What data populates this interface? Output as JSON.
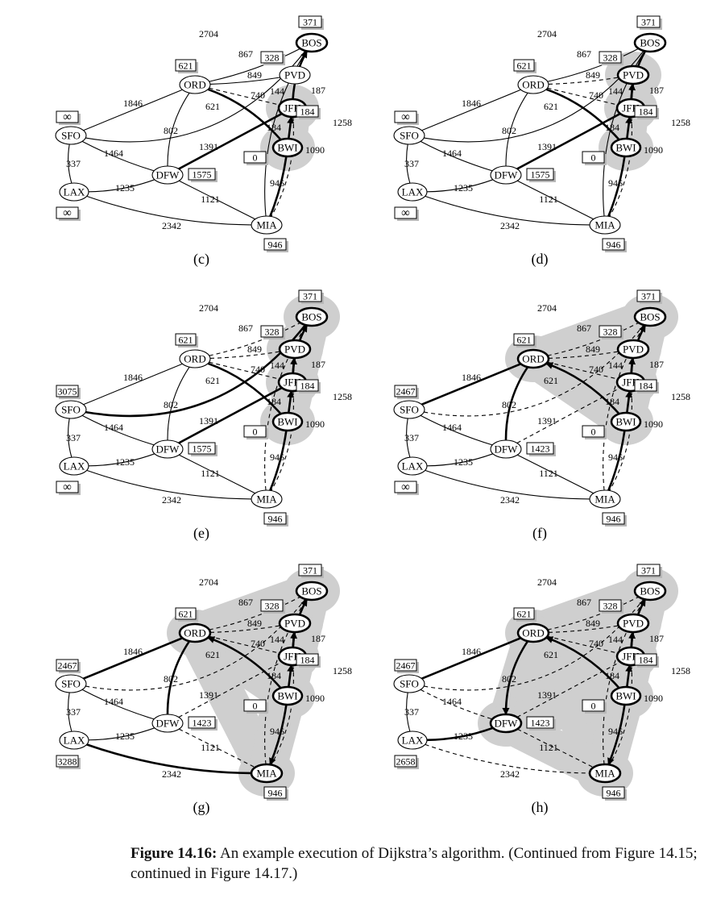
{
  "caption": {
    "label": "Figure 14.16:",
    "text": "An example execution of Dijkstra’s algorithm. (Continued from Figure 14.15; continued in Figure 14.17.)"
  },
  "colors": {
    "cloud": "#cfcfcf",
    "stroke": "#000000",
    "shadow": "#b8b8b8"
  },
  "nodes": [
    "BOS",
    "PVD",
    "ORD",
    "JFK",
    "SFO",
    "BWI",
    "DFW",
    "LAX",
    "MIA"
  ],
  "edges": [
    {
      "a": "SFO",
      "b": "BOS",
      "w": "2704"
    },
    {
      "a": "ORD",
      "b": "BOS",
      "w": "867"
    },
    {
      "a": "ORD",
      "b": "PVD",
      "w": "849"
    },
    {
      "a": "ORD",
      "b": "JFK",
      "w": "740"
    },
    {
      "a": "ORD",
      "b": "BWI",
      "w": "621"
    },
    {
      "a": "ORD",
      "b": "DFW",
      "w": "802"
    },
    {
      "a": "SFO",
      "b": "ORD",
      "w": "1846"
    },
    {
      "a": "SFO",
      "b": "DFW",
      "w": "1464"
    },
    {
      "a": "SFO",
      "b": "LAX",
      "w": "337"
    },
    {
      "a": "LAX",
      "b": "DFW",
      "w": "1235"
    },
    {
      "a": "LAX",
      "b": "MIA",
      "w": "2342"
    },
    {
      "a": "DFW",
      "b": "JFK",
      "w": "1391"
    },
    {
      "a": "DFW",
      "b": "MIA",
      "w": "1121"
    },
    {
      "a": "JFK",
      "b": "BOS",
      "w": "187"
    },
    {
      "a": "JFK",
      "b": "PVD",
      "w": "144"
    },
    {
      "a": "BWI",
      "b": "JFK",
      "w": "184"
    },
    {
      "a": "BWI",
      "b": "MIA",
      "w": "946"
    },
    {
      "a": "JFK",
      "b": "MIA",
      "w": "1090"
    },
    {
      "a": "MIA",
      "b": "BOS",
      "w": "1258"
    }
  ],
  "panels": [
    {
      "label": "(c)",
      "cloud": [
        "JFK",
        "BWI"
      ],
      "bold": [
        "BOS",
        "JFK",
        "BWI"
      ],
      "dist": {
        "BOS": "371",
        "PVD": "328",
        "ORD": "621",
        "JFK": "184",
        "SFO": "∞",
        "BWI": "0",
        "DFW": "1575",
        "LAX": "∞",
        "MIA": "946"
      },
      "tree": [
        [
          "JFK",
          "BOS"
        ],
        [
          "BWI",
          "JFK"
        ],
        [
          "BWI",
          "ORD"
        ],
        [
          "BWI",
          "MIA"
        ],
        [
          "JFK",
          "DFW"
        ]
      ],
      "arrows": [
        [
          "JFK",
          "BOS"
        ],
        [
          "BWI",
          "JFK"
        ]
      ],
      "dashed": [
        [
          "ORD",
          "JFK"
        ],
        [
          "JFK",
          "MIA"
        ]
      ]
    },
    {
      "label": "(d)",
      "cloud": [
        "PVD",
        "JFK",
        "BWI"
      ],
      "bold": [
        "BOS",
        "PVD",
        "JFK",
        "BWI"
      ],
      "dist": {
        "BOS": "371",
        "PVD": "328",
        "ORD": "621",
        "JFK": "184",
        "SFO": "∞",
        "BWI": "0",
        "DFW": "1575",
        "LAX": "∞",
        "MIA": "946"
      },
      "tree": [
        [
          "JFK",
          "BOS"
        ],
        [
          "BWI",
          "JFK"
        ],
        [
          "JFK",
          "PVD"
        ],
        [
          "BWI",
          "ORD"
        ],
        [
          "BWI",
          "MIA"
        ],
        [
          "JFK",
          "DFW"
        ]
      ],
      "arrows": [
        [
          "JFK",
          "PVD"
        ],
        [
          "BWI",
          "JFK"
        ]
      ],
      "dashed": [
        [
          "ORD",
          "JFK"
        ],
        [
          "JFK",
          "MIA"
        ],
        [
          "ORD",
          "PVD"
        ]
      ]
    },
    {
      "label": "(e)",
      "cloud": [
        "BOS",
        "PVD",
        "JFK",
        "BWI"
      ],
      "bold": [
        "BOS",
        "PVD",
        "JFK",
        "BWI"
      ],
      "dist": {
        "BOS": "371",
        "PVD": "328",
        "ORD": "621",
        "JFK": "184",
        "SFO": "3075",
        "BWI": "0",
        "DFW": "1575",
        "LAX": "∞",
        "MIA": "946"
      },
      "tree": [
        [
          "JFK",
          "BOS"
        ],
        [
          "BWI",
          "JFK"
        ],
        [
          "JFK",
          "PVD"
        ],
        [
          "BWI",
          "ORD"
        ],
        [
          "BWI",
          "MIA"
        ],
        [
          "JFK",
          "DFW"
        ],
        [
          "SFO",
          "BOS"
        ]
      ],
      "arrows": [
        [
          "JFK",
          "BOS"
        ],
        [
          "JFK",
          "PVD"
        ],
        [
          "BWI",
          "JFK"
        ]
      ],
      "dashed": [
        [
          "ORD",
          "JFK"
        ],
        [
          "JFK",
          "MIA"
        ],
        [
          "ORD",
          "PVD"
        ],
        [
          "ORD",
          "BOS"
        ],
        [
          "MIA",
          "BOS"
        ]
      ]
    },
    {
      "label": "(f)",
      "cloud": [
        "ORD",
        "BOS",
        "PVD",
        "JFK",
        "BWI"
      ],
      "bold": [
        "ORD",
        "BOS",
        "PVD",
        "JFK",
        "BWI"
      ],
      "dist": {
        "BOS": "371",
        "PVD": "328",
        "ORD": "621",
        "JFK": "184",
        "SFO": "2467",
        "BWI": "0",
        "DFW": "1423",
        "LAX": "∞",
        "MIA": "946"
      },
      "tree": [
        [
          "JFK",
          "BOS"
        ],
        [
          "BWI",
          "JFK"
        ],
        [
          "JFK",
          "PVD"
        ],
        [
          "BWI",
          "ORD"
        ],
        [
          "BWI",
          "MIA"
        ],
        [
          "ORD",
          "DFW"
        ],
        [
          "ORD",
          "SFO"
        ]
      ],
      "arrows": [
        [
          "JFK",
          "BOS"
        ],
        [
          "JFK",
          "PVD"
        ],
        [
          "BWI",
          "JFK"
        ],
        [
          "BWI",
          "ORD"
        ]
      ],
      "dashed": [
        [
          "ORD",
          "JFK"
        ],
        [
          "JFK",
          "MIA"
        ],
        [
          "ORD",
          "PVD"
        ],
        [
          "ORD",
          "BOS"
        ],
        [
          "MIA",
          "BOS"
        ],
        [
          "SFO",
          "BOS"
        ],
        [
          "DFW",
          "JFK"
        ]
      ]
    },
    {
      "label": "(g)",
      "cloud": [
        "ORD",
        "BOS",
        "PVD",
        "JFK",
        "BWI",
        "MIA"
      ],
      "bold": [
        "ORD",
        "BOS",
        "PVD",
        "JFK",
        "BWI",
        "MIA"
      ],
      "dist": {
        "BOS": "371",
        "PVD": "328",
        "ORD": "621",
        "JFK": "184",
        "SFO": "2467",
        "BWI": "0",
        "DFW": "1423",
        "LAX": "3288",
        "MIA": "946"
      },
      "tree": [
        [
          "JFK",
          "BOS"
        ],
        [
          "BWI",
          "JFK"
        ],
        [
          "JFK",
          "PVD"
        ],
        [
          "BWI",
          "ORD"
        ],
        [
          "BWI",
          "MIA"
        ],
        [
          "ORD",
          "DFW"
        ],
        [
          "ORD",
          "SFO"
        ],
        [
          "LAX",
          "MIA"
        ]
      ],
      "arrows": [
        [
          "JFK",
          "BOS"
        ],
        [
          "JFK",
          "PVD"
        ],
        [
          "BWI",
          "JFK"
        ],
        [
          "BWI",
          "ORD"
        ],
        [
          "BWI",
          "MIA"
        ]
      ],
      "dashed": [
        [
          "ORD",
          "JFK"
        ],
        [
          "JFK",
          "MIA"
        ],
        [
          "ORD",
          "PVD"
        ],
        [
          "ORD",
          "BOS"
        ],
        [
          "MIA",
          "BOS"
        ],
        [
          "SFO",
          "BOS"
        ],
        [
          "DFW",
          "JFK"
        ],
        [
          "DFW",
          "MIA"
        ]
      ]
    },
    {
      "label": "(h)",
      "cloud": [
        "ORD",
        "BOS",
        "PVD",
        "JFK",
        "BWI",
        "MIA",
        "DFW"
      ],
      "bold": [
        "ORD",
        "BOS",
        "PVD",
        "JFK",
        "BWI",
        "MIA",
        "DFW"
      ],
      "dist": {
        "BOS": "371",
        "PVD": "328",
        "ORD": "621",
        "JFK": "184",
        "SFO": "2467",
        "BWI": "0",
        "DFW": "1423",
        "LAX": "2658",
        "MIA": "946"
      },
      "tree": [
        [
          "JFK",
          "BOS"
        ],
        [
          "BWI",
          "JFK"
        ],
        [
          "JFK",
          "PVD"
        ],
        [
          "BWI",
          "ORD"
        ],
        [
          "BWI",
          "MIA"
        ],
        [
          "ORD",
          "DFW"
        ],
        [
          "ORD",
          "SFO"
        ],
        [
          "DFW",
          "LAX"
        ]
      ],
      "arrows": [
        [
          "JFK",
          "BOS"
        ],
        [
          "JFK",
          "PVD"
        ],
        [
          "BWI",
          "JFK"
        ],
        [
          "BWI",
          "ORD"
        ],
        [
          "BWI",
          "MIA"
        ],
        [
          "ORD",
          "DFW"
        ]
      ],
      "dashed": [
        [
          "ORD",
          "JFK"
        ],
        [
          "JFK",
          "MIA"
        ],
        [
          "ORD",
          "PVD"
        ],
        [
          "ORD",
          "BOS"
        ],
        [
          "MIA",
          "BOS"
        ],
        [
          "SFO",
          "BOS"
        ],
        [
          "DFW",
          "JFK"
        ],
        [
          "DFW",
          "MIA"
        ],
        [
          "SFO",
          "DFW"
        ],
        [
          "LAX",
          "MIA"
        ]
      ]
    }
  ]
}
